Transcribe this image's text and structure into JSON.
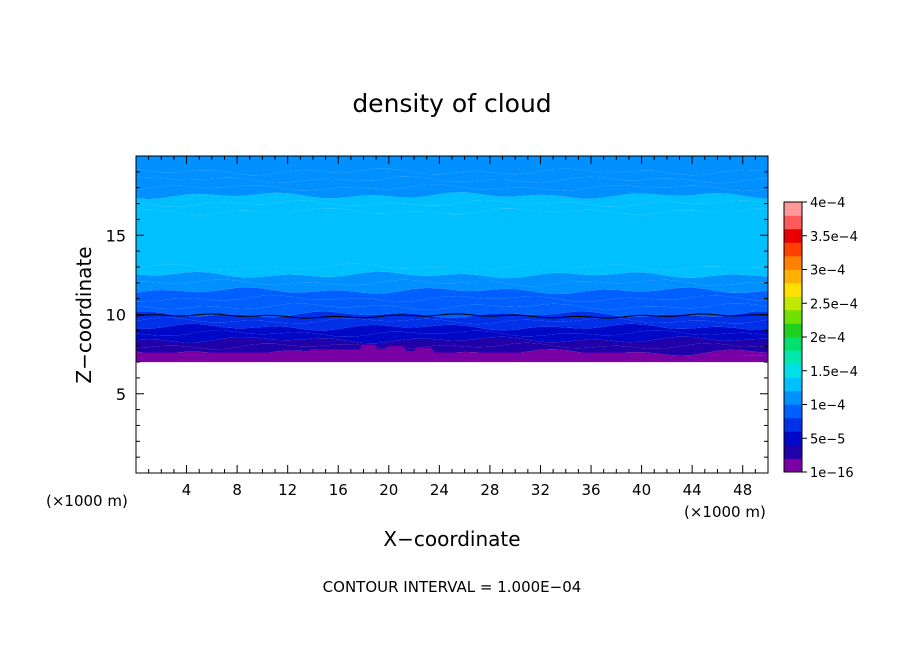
{
  "chart_data": {
    "type": "heatmap",
    "title": "density of cloud",
    "xlabel": "X−coordinate",
    "ylabel": "Z−coordinate",
    "x_unit_left": "(×1000 m)",
    "x_unit_right": "(×1000 m)",
    "footer": "CONTOUR INTERVAL = 1.000E−04",
    "xlim": [
      0,
      50
    ],
    "ylim": [
      0,
      20
    ],
    "x_ticks": [
      4,
      8,
      12,
      16,
      20,
      24,
      28,
      32,
      36,
      40,
      44,
      48
    ],
    "x_tick_labels": [
      "4",
      "8",
      "12",
      "16",
      "20",
      "24",
      "28",
      "32",
      "36",
      "40",
      "44",
      "48"
    ],
    "y_ticks": [
      5,
      10,
      15
    ],
    "y_tick_labels": [
      "5",
      "10",
      "15"
    ],
    "colorbar": {
      "range": [
        0,
        0.0004
      ],
      "tick_values": [
        0,
        5e-05,
        0.0001,
        0.00015,
        0.0002,
        0.00025,
        0.0003,
        0.00035,
        0.0004
      ],
      "tick_labels": [
        "1e−16",
        "5e−5",
        "1e−4",
        "1.5e−4",
        "2e−4",
        "2.5e−4",
        "3e−4",
        "3.5e−4",
        "4e−4"
      ],
      "colors": [
        "#7a00a6",
        "#2000a8",
        "#0008c8",
        "#0030e8",
        "#0060ff",
        "#0090ff",
        "#00c0ff",
        "#00e0e8",
        "#00e8b0",
        "#00e070",
        "#20d020",
        "#70e000",
        "#c0e800",
        "#ffe000",
        "#ffb000",
        "#ff8000",
        "#ff4000",
        "#e80000",
        "#ff5a5a",
        "#ff9999"
      ]
    },
    "cloud_profile": {
      "z": [
        7.0,
        7.3,
        7.6,
        8.0,
        8.4,
        8.8,
        9.2,
        9.6,
        10.0,
        10.5,
        11.0,
        11.5,
        12.0,
        12.5,
        13.0,
        16.5,
        17.0,
        17.5,
        18.0,
        18.5,
        19.0,
        20.0
      ],
      "values": [
        5e-06,
        1.5e-05,
        2e-05,
        3e-05,
        4e-05,
        5e-05,
        6e-05,
        7e-05,
        8e-05,
        8.5e-05,
        9e-05,
        0.0001,
        0.00011,
        0.00012,
        0.00013,
        0.00013,
        0.00012,
        0.00011,
        0.000105,
        0.0001,
        0.0001,
        0.0001
      ]
    },
    "cloud_base_z": 7.0,
    "highlight_contour_z": 9.9
  }
}
